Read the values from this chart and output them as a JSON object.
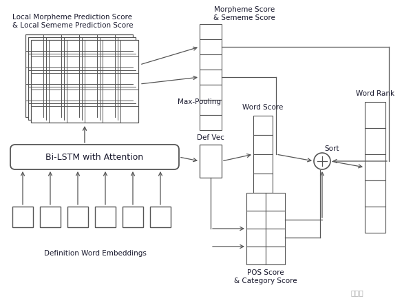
{
  "bg_color": "#ffffff",
  "labels": {
    "local_score": "Local Morpheme Prediction Score\n& Local Sememe Prediction Score",
    "morpheme_sememe": "Morpheme Score\n& Sememe Score",
    "max_pooling": "Max-Pooling",
    "word_score": "Word Score",
    "word_rank": "Word Rank",
    "def_vec": "Def Vec",
    "sort": "Sort",
    "bilstm": "Bi-LSTM with Attention",
    "embeddings": "Definition Word Embeddings",
    "pos_score": "POS Score\n& Category Score"
  },
  "grid_rows": 5,
  "grid_cols": 6,
  "font_size": 8,
  "line_color": "#555555",
  "text_color": "#1a1a2e"
}
